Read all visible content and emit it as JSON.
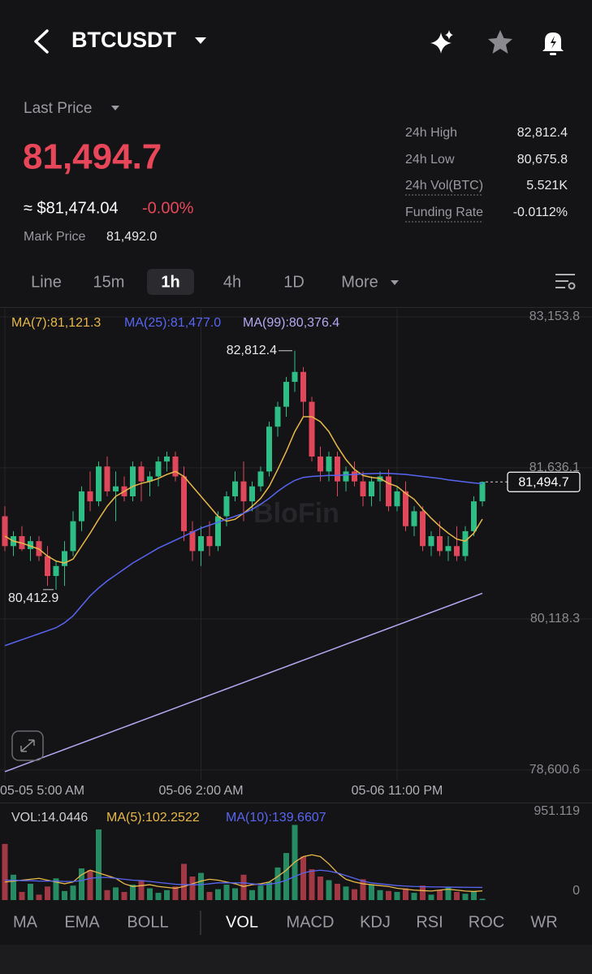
{
  "header": {
    "symbol": "BTCUSDT"
  },
  "price": {
    "last_price_label": "Last Price",
    "last_price": "81,494.7",
    "usd": "≈ $81,474.04",
    "change": "-0.00%",
    "mark_label": "Mark Price",
    "mark_price": "81,492.0"
  },
  "stats": [
    {
      "label": "24h High",
      "value": "82,812.4",
      "underlined": false
    },
    {
      "label": "24h Low",
      "value": "80,675.8",
      "underlined": false
    },
    {
      "label": "24h Vol(BTC)",
      "value": "5.521K",
      "underlined": true
    },
    {
      "label": "Funding Rate",
      "value": "-0.0112%",
      "underlined": true
    }
  ],
  "intervals": [
    {
      "label": "Line"
    },
    {
      "label": "15m"
    },
    {
      "label": "1h",
      "selected": true
    },
    {
      "label": "4h"
    },
    {
      "label": "1D"
    },
    {
      "label": "More"
    }
  ],
  "indicators": [
    {
      "label": "MA"
    },
    {
      "label": "EMA"
    },
    {
      "label": "BOLL"
    },
    {
      "label": "VOL",
      "selected": true
    },
    {
      "label": "MACD"
    },
    {
      "label": "KDJ"
    },
    {
      "label": "RSI"
    },
    {
      "label": "ROC"
    },
    {
      "label": "WR"
    }
  ],
  "chart_data": [
    {
      "type": "candlestick",
      "watermark": "BloFin",
      "grid": true,
      "up_color": "#2ebd85",
      "down_color": "#e0475a",
      "categories": [
        "05-05 5:00 AM",
        null,
        null,
        null,
        null,
        null,
        null,
        null,
        null,
        null,
        null,
        null,
        null,
        null,
        null,
        null,
        null,
        null,
        null,
        null,
        null,
        null,
        null,
        "05-06 2:00 AM",
        null,
        null,
        null,
        null,
        null,
        null,
        null,
        null,
        null,
        null,
        null,
        null,
        null,
        null,
        null,
        null,
        null,
        null,
        null,
        null,
        null,
        null,
        "05-06 11:00 PM",
        null,
        null,
        null,
        null,
        null,
        null,
        null,
        null,
        null,
        null
      ],
      "open": [
        81150,
        80850,
        80950,
        80820,
        80900,
        80750,
        80550,
        80650,
        80800,
        81100,
        81400,
        81300,
        81650,
        81400,
        81450,
        81350,
        81650,
        81500,
        81550,
        81700,
        81750,
        81550,
        81000,
        80800,
        80950,
        80850,
        81150,
        81350,
        81500,
        81300,
        81450,
        81600,
        82050,
        82250,
        82500,
        82600,
        82300,
        81750,
        81600,
        81750,
        81500,
        81600,
        81500,
        81350,
        81500,
        81550,
        81250,
        81400,
        81050,
        81200,
        80850,
        80950,
        80800,
        80850,
        80750,
        81000,
        81300
      ],
      "high": [
        81250,
        81000,
        81050,
        80950,
        80950,
        80850,
        80700,
        80900,
        81200,
        81450,
        81600,
        81700,
        81750,
        81600,
        81550,
        81700,
        81700,
        81600,
        81750,
        81800,
        81800,
        81650,
        81100,
        81050,
        81100,
        81200,
        81400,
        81600,
        81700,
        81500,
        81650,
        82100,
        82300,
        82550,
        82812.4,
        82650,
        82350,
        81850,
        81800,
        81800,
        81650,
        81700,
        81600,
        81550,
        81600,
        81620,
        81450,
        81500,
        81250,
        81250,
        81000,
        81100,
        80950,
        81050,
        81050,
        81350,
        81500
      ],
      "low": [
        80800,
        80750,
        80800,
        80700,
        80700,
        80450,
        80412.9,
        80450,
        80750,
        81000,
        81200,
        81250,
        81350,
        81100,
        81300,
        81300,
        81300,
        81350,
        81450,
        81600,
        81500,
        80900,
        80700,
        80650,
        80750,
        80800,
        81050,
        81300,
        81100,
        81200,
        81400,
        81550,
        81950,
        82150,
        82400,
        82150,
        81700,
        81500,
        81500,
        81350,
        81400,
        81450,
        81250,
        81250,
        81300,
        81200,
        81200,
        81000,
        80950,
        80800,
        80750,
        80750,
        80700,
        80700,
        80700,
        80950,
        81250
      ],
      "close": [
        80850,
        80950,
        80820,
        80900,
        80750,
        80550,
        80650,
        80800,
        81100,
        81400,
        81300,
        81650,
        81400,
        81450,
        81350,
        81650,
        81500,
        81550,
        81700,
        81750,
        81550,
        81000,
        80800,
        80950,
        80850,
        81150,
        81350,
        81500,
        81300,
        81450,
        81600,
        82050,
        82250,
        82500,
        82600,
        82300,
        81750,
        81600,
        81750,
        81500,
        81600,
        81500,
        81350,
        81500,
        81550,
        81250,
        81400,
        81050,
        81200,
        80850,
        80950,
        80800,
        80850,
        80750,
        81000,
        81300,
        81494.7
      ],
      "ma_series": [
        {
          "name": "MA(7):81,121.3",
          "color": "#e8b84a",
          "values": [
            80950,
            80900,
            80880,
            80850,
            80820,
            80750,
            80700,
            80680,
            80720,
            80850,
            80980,
            81120,
            81250,
            81350,
            81400,
            81450,
            81480,
            81500,
            81530,
            81570,
            81600,
            81550,
            81450,
            81350,
            81250,
            81150,
            81100,
            81120,
            81180,
            81250,
            81330,
            81450,
            81620,
            81800,
            82000,
            82150,
            82150,
            82100,
            82000,
            81850,
            81720,
            81620,
            81560,
            81540,
            81530,
            81480,
            81450,
            81380,
            81320,
            81220,
            81130,
            81050,
            80980,
            80920,
            80900,
            80980,
            81121.3
          ]
        },
        {
          "name": "MA(25):81,477.0",
          "color": "#5865f2",
          "values": [
            79850,
            79880,
            79910,
            79940,
            79970,
            80000,
            80030,
            80080,
            80150,
            80250,
            80350,
            80430,
            80500,
            80560,
            80620,
            80680,
            80730,
            80780,
            80830,
            80870,
            80910,
            80950,
            80990,
            81030,
            81060,
            81090,
            81120,
            81150,
            81180,
            81220,
            81270,
            81330,
            81400,
            81460,
            81510,
            81540,
            81550,
            81555,
            81560,
            81560,
            81565,
            81570,
            81575,
            81578,
            81580,
            81580,
            81575,
            81570,
            81560,
            81550,
            81540,
            81530,
            81515,
            81505,
            81495,
            81485,
            81477.0
          ]
        },
        {
          "name": "MA(99):80,376.4",
          "color": "#b5a9f2",
          "values": [
            78584,
            78616,
            78648,
            78680,
            78712,
            78744,
            78776,
            78808,
            78840,
            78872,
            78904,
            78936,
            78968,
            79000,
            79032,
            79064,
            79096,
            79128,
            79160,
            79192,
            79224,
            79256,
            79288,
            79320,
            79352,
            79384,
            79416,
            79448,
            79480,
            79512,
            79544,
            79576,
            79608,
            79640,
            79672,
            79704,
            79736,
            79768,
            79800,
            79832,
            79864,
            79896,
            79928,
            79960,
            79992,
            80024,
            80056,
            80088,
            80120,
            80152,
            80184,
            80216,
            80248,
            80280,
            80312,
            80344,
            80376.4
          ]
        }
      ],
      "annotations": [
        {
          "text": "82,812.4",
          "value": 82812.4
        },
        {
          "text": "80,412.9",
          "value": 80412.9
        }
      ],
      "last_price_tag": {
        "text": "81,494.7",
        "value": 81494.7
      },
      "ylim": [
        78502,
        83235
      ],
      "yticks": [
        {
          "value": 78600.6,
          "label": "78,600.6"
        },
        {
          "value": 80118.3,
          "label": "80,118.3"
        },
        {
          "value": 81636.1,
          "label": "81,636.1"
        },
        {
          "value": 83153.8,
          "label": "83,153.8"
        }
      ]
    },
    {
      "type": "bar",
      "series": [
        {
          "name": "VOL:14.0446",
          "values": [
            620,
            280,
            90,
            180,
            60,
            150,
            240,
            100,
            160,
            350,
            330,
            780,
            110,
            140,
            90,
            170,
            220,
            130,
            80,
            110,
            150,
            400,
            260,
            300,
            90,
            120,
            170,
            130,
            280,
            110,
            160,
            200,
            360,
            520,
            830,
            480,
            340,
            260,
            220,
            180,
            150,
            120,
            230,
            170,
            110,
            100,
            90,
            130,
            80,
            160,
            60,
            110,
            140,
            90,
            70,
            100,
            14.0446
          ]
        }
      ],
      "ma_series": [
        {
          "name": "MA(5):102.2522",
          "color": "#e8b84a",
          "values": [
            200,
            210,
            220,
            230,
            240,
            220,
            200,
            180,
            200,
            280,
            330,
            300,
            270,
            240,
            180,
            150,
            160,
            170,
            150,
            140,
            130,
            150,
            180,
            210,
            230,
            220,
            200,
            180,
            150,
            170,
            180,
            200,
            260,
            330,
            420,
            480,
            500,
            480,
            400,
            300,
            230,
            200,
            180,
            170,
            160,
            150,
            130,
            120,
            110,
            105,
            100,
            110,
            120,
            110,
            100,
            95,
            102.2522
          ]
        },
        {
          "name": "MA(10):139.6607",
          "color": "#5865f2",
          "values": [
            220,
            220,
            215,
            215,
            210,
            210,
            210,
            205,
            205,
            215,
            240,
            250,
            250,
            240,
            230,
            220,
            215,
            205,
            195,
            185,
            175,
            170,
            170,
            170,
            180,
            190,
            190,
            190,
            190,
            180,
            170,
            175,
            190,
            220,
            260,
            300,
            320,
            330,
            320,
            300,
            270,
            240,
            210,
            190,
            180,
            170,
            160,
            155,
            150,
            148,
            146,
            145,
            143,
            142,
            141,
            140,
            139.6607
          ]
        }
      ],
      "ylim": [
        0,
        951.119
      ],
      "yticks": [
        0,
        951.119
      ]
    }
  ]
}
